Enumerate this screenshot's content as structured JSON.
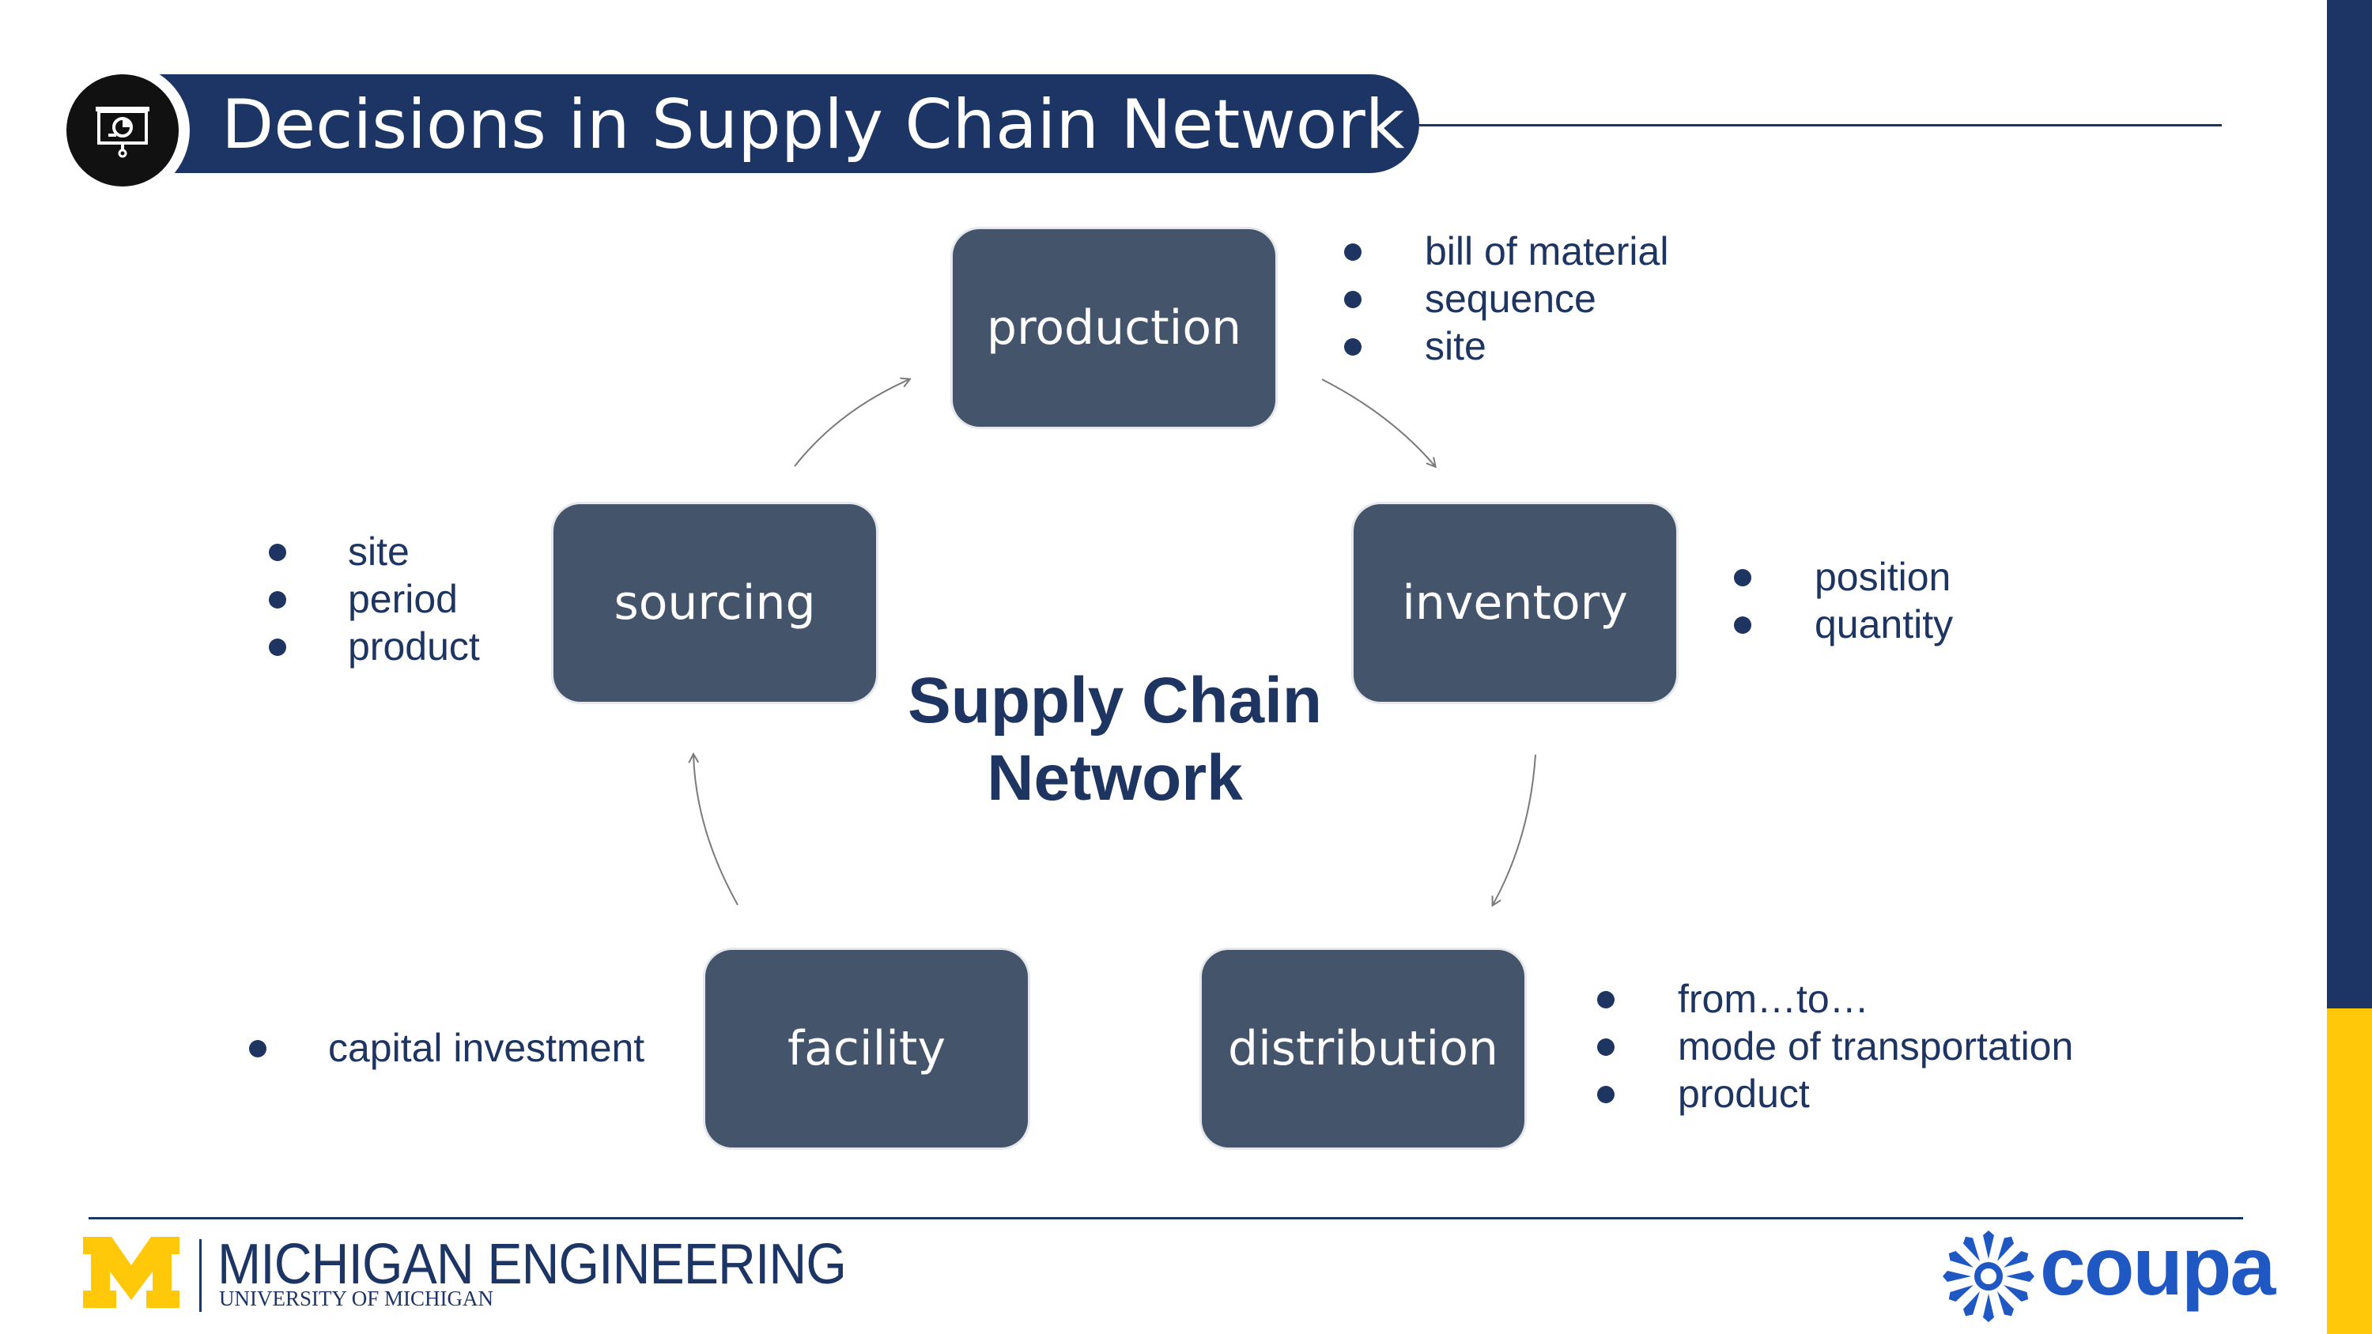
{
  "title": "Decisions in Supply Chain Network",
  "diagram": {
    "center": [
      "Supply Chain",
      "Network"
    ],
    "nodes": {
      "production": "production",
      "inventory": "inventory",
      "distribution": "distribution",
      "facility": "facility",
      "sourcing": "sourcing"
    },
    "notes": {
      "production": [
        "bill of material",
        "sequence",
        "site"
      ],
      "inventory": [
        "position",
        "quantity"
      ],
      "distribution": [
        "from…to…",
        "mode of transportation",
        "product"
      ],
      "facility": [
        "capital investment"
      ],
      "sourcing": [
        "site",
        "period",
        "product"
      ]
    }
  },
  "footer": {
    "university_name": "MICHIGAN ENGINEERING",
    "university_sub": "UNIVERSITY OF MICHIGAN",
    "partner": "coupa"
  },
  "colors": {
    "navy": "#1d3564",
    "node_fill": "#44546a",
    "gold": "#ffc808",
    "coupa_blue": "#1f57c3"
  },
  "icons": [
    "presentation-chart-icon",
    "block-m-logo-icon",
    "coupa-flower-icon"
  ]
}
